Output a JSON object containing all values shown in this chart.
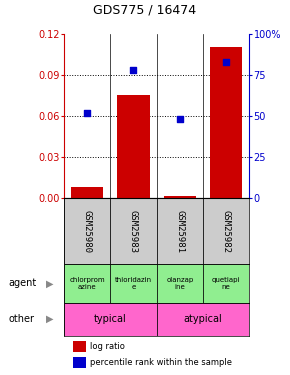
{
  "title": "GDS775 / 16474",
  "samples": [
    "GSM25980",
    "GSM25983",
    "GSM25981",
    "GSM25982"
  ],
  "log_ratio": [
    0.008,
    0.075,
    0.002,
    0.11
  ],
  "percentile": [
    52,
    78,
    48,
    83
  ],
  "ylim_left": [
    0,
    0.12
  ],
  "ylim_right": [
    0,
    100
  ],
  "yticks_left": [
    0,
    0.03,
    0.06,
    0.09,
    0.12
  ],
  "yticks_right": [
    0,
    25,
    50,
    75,
    100
  ],
  "bar_color": "#cc0000",
  "dot_color": "#0000cc",
  "agent_labels": [
    "chlorprom\nazine",
    "thioridazin\ne",
    "olanzap\nine",
    "quetiapi\nne"
  ],
  "agent_color": "#90ee90",
  "sample_box_color": "#cccccc",
  "typical_label": "typical",
  "atypical_label": "atypical",
  "other_color": "#ff66cc",
  "legend_bar": "log ratio",
  "legend_dot": "percentile rank within the sample",
  "agent_row_label": "agent",
  "other_row_label": "other",
  "background_color": "#ffffff"
}
